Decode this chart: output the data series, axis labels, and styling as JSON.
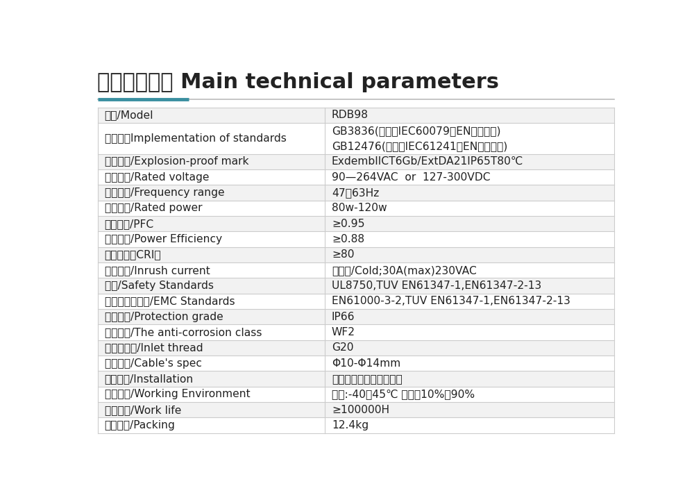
{
  "title": "主要技术参数 Main technical parameters",
  "title_fontsize": 22,
  "accent_color": "#3a8fa0",
  "gray_line_color": "#bbbbbb",
  "row_bg_odd": "#f2f2f2",
  "row_bg_even": "#ffffff",
  "border_color": "#cccccc",
  "text_color": "#222222",
  "col_split": 0.44,
  "rows": [
    [
      "型号/Model",
      "RDB98"
    ],
    [
      "执行标准Implementation of standards",
      "GB3836(等效于IEC60079、EN系列标准)\nGB12476(等效于IEC61241、EN系列标准)"
    ],
    [
      "防爆标志/Explosion-proof mark",
      "ExdembIICT6Gb/ExtDA21IP65T80℃"
    ],
    [
      "额定电压/Rated voltage",
      "90—264VAC  or  127-300VDC"
    ],
    [
      "频率范围/Frequency range",
      "47－63Hz"
    ],
    [
      "额定功率/Rated power",
      "80w-120w"
    ],
    [
      "功率因数/PFC",
      "≥0.95"
    ],
    [
      "电源效率/Power Efficiency",
      "≥0.88"
    ],
    [
      "显色指数（CRI）",
      "≥80"
    ],
    [
      "浪涌电流/Inrush current",
      "冷启动/Cold;30A(max)230VAC"
    ],
    [
      "安规/Safety Standards",
      "UL8750,TUV EN61347-1,EN61347-2-13"
    ],
    [
      "电磁兼容性标准/EMC Standards",
      "EN61000-3-2,TUV EN61347-1,EN61347-2-13"
    ],
    [
      "防护等级/Protection grade",
      "IP66"
    ],
    [
      "防腐等级/The anti-corrosion class",
      "WF2"
    ],
    [
      "进线口螺纹/Inlet thread",
      "G20"
    ],
    [
      "电缆规格/Cable's spec",
      "Φ10-Φ14mm"
    ],
    [
      "安装方式/Installation",
      "壁挂式、吸顶式、支架式"
    ],
    [
      "工作环境/Working Environment",
      "温度:-40～45℃ 湿度：10%～90%"
    ],
    [
      "工作寿命/Work life",
      "≥100000H"
    ],
    [
      "产品重量/Packing",
      "12.4kg"
    ]
  ]
}
